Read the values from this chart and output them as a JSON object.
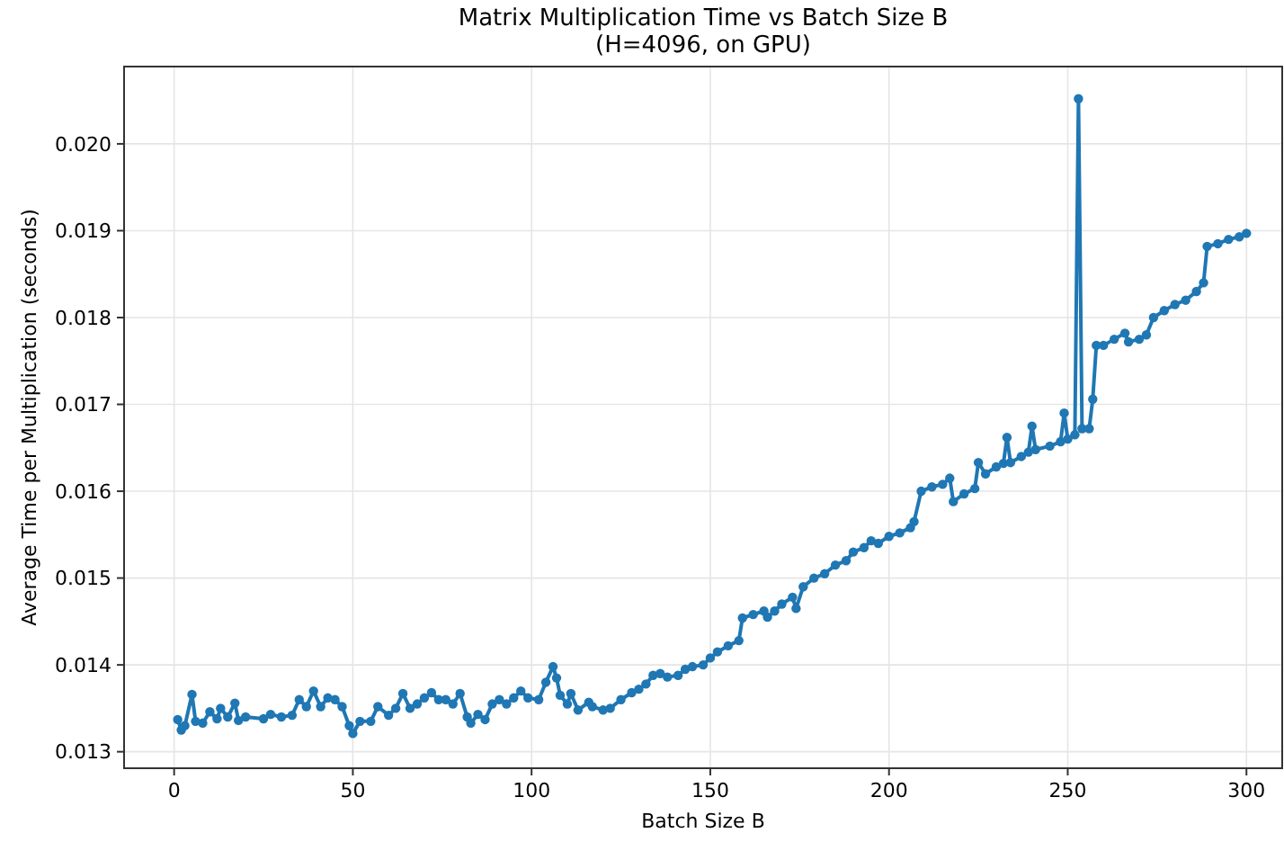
{
  "chart_data": {
    "type": "line",
    "title": "Matrix Multiplication Time vs Batch Size B\n(H=4096, on GPU)",
    "xlabel": "Batch Size B",
    "ylabel": "Average Time per Multiplication (seconds)",
    "xlim": [
      -14,
      310
    ],
    "ylim": [
      0.01281,
      0.02089
    ],
    "xticks": [
      0,
      50,
      100,
      150,
      200,
      250,
      300
    ],
    "yticks": [
      {
        "value": 0.013,
        "label": "0.013"
      },
      {
        "value": 0.014,
        "label": "0.014"
      },
      {
        "value": 0.015,
        "label": "0.015"
      },
      {
        "value": 0.016,
        "label": "0.016"
      },
      {
        "value": 0.017,
        "label": "0.017"
      },
      {
        "value": 0.018,
        "label": "0.018"
      },
      {
        "value": 0.019,
        "label": "0.019"
      },
      {
        "value": 0.02,
        "label": "0.020"
      }
    ],
    "grid": true,
    "marker": "circle",
    "line_style": "solid",
    "series": [
      {
        "color": "#1f77b4",
        "x": [
          1,
          2,
          3,
          5,
          6,
          8,
          10,
          12,
          13,
          15,
          17,
          18,
          20,
          25,
          27,
          30,
          33,
          35,
          37,
          39,
          41,
          43,
          45,
          47,
          49,
          50,
          52,
          55,
          57,
          60,
          62,
          64,
          66,
          68,
          70,
          72,
          74,
          76,
          78,
          80,
          82,
          83,
          85,
          87,
          89,
          91,
          93,
          95,
          97,
          99,
          102,
          104,
          106,
          107,
          108,
          110,
          111,
          113,
          116,
          117,
          120,
          122,
          125,
          128,
          130,
          132,
          134,
          136,
          138,
          141,
          143,
          145,
          148,
          150,
          152,
          155,
          158,
          159,
          162,
          165,
          166,
          168,
          170,
          173,
          174,
          176,
          179,
          182,
          185,
          188,
          190,
          193,
          195,
          197,
          200,
          203,
          206,
          207,
          209,
          212,
          215,
          217,
          218,
          221,
          224,
          225,
          227,
          230,
          232,
          233,
          234,
          237,
          239,
          240,
          241,
          245,
          248,
          249,
          250,
          252,
          253,
          254,
          256,
          257,
          258,
          260,
          263,
          266,
          267,
          270,
          272,
          274,
          277,
          280,
          283,
          286,
          288,
          289,
          292,
          295,
          298,
          300
        ],
        "values": [
          0.01337,
          0.01325,
          0.0133,
          0.01366,
          0.01335,
          0.01333,
          0.01346,
          0.01338,
          0.0135,
          0.0134,
          0.01356,
          0.01336,
          0.0134,
          0.01338,
          0.01343,
          0.0134,
          0.01342,
          0.0136,
          0.01352,
          0.0137,
          0.01352,
          0.01362,
          0.0136,
          0.01352,
          0.0133,
          0.01321,
          0.01335,
          0.01335,
          0.01352,
          0.01342,
          0.0135,
          0.01367,
          0.0135,
          0.01355,
          0.01362,
          0.01368,
          0.0136,
          0.0136,
          0.01355,
          0.01367,
          0.0134,
          0.01333,
          0.01343,
          0.01337,
          0.01355,
          0.0136,
          0.01355,
          0.01362,
          0.0137,
          0.01362,
          0.0136,
          0.0138,
          0.01398,
          0.01385,
          0.01365,
          0.01355,
          0.01367,
          0.01348,
          0.01357,
          0.01352,
          0.01348,
          0.0135,
          0.0136,
          0.01368,
          0.01372,
          0.01378,
          0.01388,
          0.0139,
          0.01386,
          0.01388,
          0.01395,
          0.01398,
          0.014,
          0.01408,
          0.01415,
          0.01422,
          0.01428,
          0.01454,
          0.01458,
          0.01462,
          0.01455,
          0.01462,
          0.0147,
          0.01478,
          0.01465,
          0.0149,
          0.015,
          0.01505,
          0.01515,
          0.0152,
          0.0153,
          0.01535,
          0.01543,
          0.0154,
          0.01548,
          0.01552,
          0.01558,
          0.01565,
          0.016,
          0.01605,
          0.01608,
          0.01615,
          0.01588,
          0.01597,
          0.01603,
          0.01633,
          0.0162,
          0.01628,
          0.01632,
          0.01662,
          0.01633,
          0.0164,
          0.01645,
          0.01675,
          0.01648,
          0.01652,
          0.01657,
          0.0169,
          0.0166,
          0.01665,
          0.02052,
          0.01672,
          0.01672,
          0.01706,
          0.01768,
          0.01768,
          0.01775,
          0.01782,
          0.01772,
          0.01775,
          0.0178,
          0.018,
          0.01808,
          0.01815,
          0.0182,
          0.0183,
          0.0184,
          0.01882,
          0.01885,
          0.0189,
          0.01893,
          0.01897
        ]
      }
    ]
  }
}
